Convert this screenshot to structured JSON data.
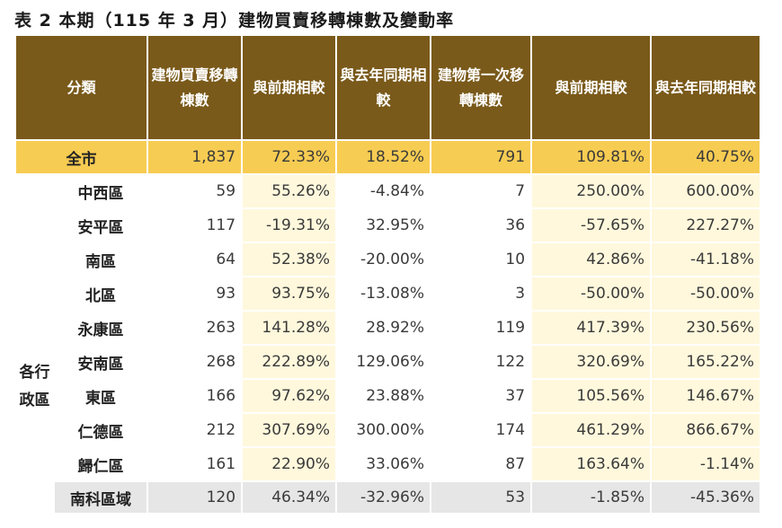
{
  "title": "表 2 本期（115 年 3 月）建物買賣移轉棟數及變動率",
  "headers": {
    "category": "分類",
    "transfers": "建物買賣移轉棟數",
    "prev": "與前期相較",
    "yoy": "與去年同期相較",
    "first": "建物第一次移轉棟數",
    "prev2": "與前期相較",
    "yoy2": "與去年同期相較"
  },
  "city": {
    "name": "全市",
    "transfers": "1,837",
    "prev": "72.33%",
    "yoy": "18.52%",
    "first": "791",
    "prev2": "109.81%",
    "yoy2": "40.75%"
  },
  "group_label": "各行政區",
  "rows": [
    {
      "name": "中西區",
      "transfers": "59",
      "prev": "55.26%",
      "yoy": "-4.84%",
      "first": "7",
      "prev2": "250.00%",
      "yoy2": "600.00%"
    },
    {
      "name": "安平區",
      "transfers": "117",
      "prev": "-19.31%",
      "yoy": "32.95%",
      "first": "36",
      "prev2": "-57.65%",
      "yoy2": "227.27%"
    },
    {
      "name": "南區",
      "transfers": "64",
      "prev": "52.38%",
      "yoy": "-20.00%",
      "first": "10",
      "prev2": "42.86%",
      "yoy2": "-41.18%"
    },
    {
      "name": "北區",
      "transfers": "93",
      "prev": "93.75%",
      "yoy": "-13.08%",
      "first": "3",
      "prev2": "-50.00%",
      "yoy2": "-50.00%"
    },
    {
      "name": "永康區",
      "transfers": "263",
      "prev": "141.28%",
      "yoy": "28.92%",
      "first": "119",
      "prev2": "417.39%",
      "yoy2": "230.56%"
    },
    {
      "name": "安南區",
      "transfers": "268",
      "prev": "222.89%",
      "yoy": "129.06%",
      "first": "122",
      "prev2": "320.69%",
      "yoy2": "165.22%"
    },
    {
      "name": "東區",
      "transfers": "166",
      "prev": "97.62%",
      "yoy": "23.88%",
      "first": "37",
      "prev2": "105.56%",
      "yoy2": "146.67%"
    },
    {
      "name": "仁德區",
      "transfers": "212",
      "prev": "307.69%",
      "yoy": "300.00%",
      "first": "174",
      "prev2": "461.29%",
      "yoy2": "866.67%"
    },
    {
      "name": "歸仁區",
      "transfers": "161",
      "prev": "22.90%",
      "yoy": "33.06%",
      "first": "87",
      "prev2": "163.64%",
      "yoy2": "-1.14%"
    }
  ],
  "region": {
    "name": "南科區域",
    "transfers": "120",
    "prev": "46.34%",
    "yoy": "-32.96%",
    "first": "53",
    "prev2": "-1.85%",
    "yoy2": "-45.36%"
  }
}
